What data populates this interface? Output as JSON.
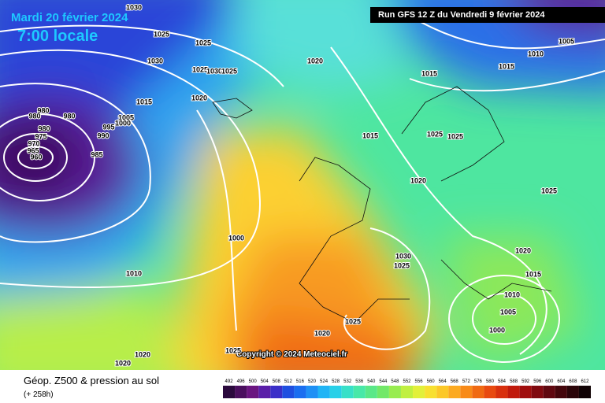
{
  "header": {
    "date": "Mardi 20 février 2024",
    "time": "7:00 locale",
    "run": "Run GFS 12 Z du Vendredi 9 février 2024"
  },
  "copyright": "Copyright © 2024 Meteociel.fr",
  "isobar_labels": [
    "1030",
    "1025",
    "1025",
    "1030",
    "1020",
    "1025",
    "1030",
    "1025",
    "1015",
    "1015",
    "1010",
    "1005",
    "1020",
    "1015",
    "1005",
    "1000",
    "995",
    "990",
    "985",
    "980",
    "980",
    "980",
    "980",
    "975",
    "970",
    "965",
    "960",
    "1015",
    "1025",
    "1025",
    "1020",
    "1025",
    "1000",
    "1010",
    "1030",
    "1025",
    "1020",
    "1015",
    "1010",
    "1005",
    "1000",
    "1025",
    "1020",
    "1020",
    "1020",
    "1025"
  ],
  "footer": {
    "title": "Géop. Z500 & pression au sol",
    "lead": "(+ 258h)"
  },
  "colorbar": {
    "ticks": [
      492,
      496,
      500,
      504,
      508,
      512,
      516,
      520,
      524,
      528,
      532,
      536,
      540,
      544,
      548,
      552,
      556,
      560,
      564,
      568,
      572,
      576,
      580,
      584,
      588,
      592,
      596,
      600,
      604,
      608,
      612
    ],
    "colors": [
      "#2b0a3d",
      "#4a0f5e",
      "#6a1580",
      "#5a1ea8",
      "#3a2fc8",
      "#1f4fe0",
      "#1a6ef0",
      "#1e90f5",
      "#20b4f5",
      "#28d0e8",
      "#38e0c8",
      "#48e8a8",
      "#5ae888",
      "#72e868",
      "#98ec50",
      "#c0f040",
      "#e2f03a",
      "#f8e030",
      "#fcc828",
      "#fcaa20",
      "#f88a18",
      "#f06a12",
      "#e84a10",
      "#d8300e",
      "#c01a0c",
      "#a00e0e",
      "#800a10",
      "#600810",
      "#44060c",
      "#2a0408",
      "#100204"
    ]
  }
}
